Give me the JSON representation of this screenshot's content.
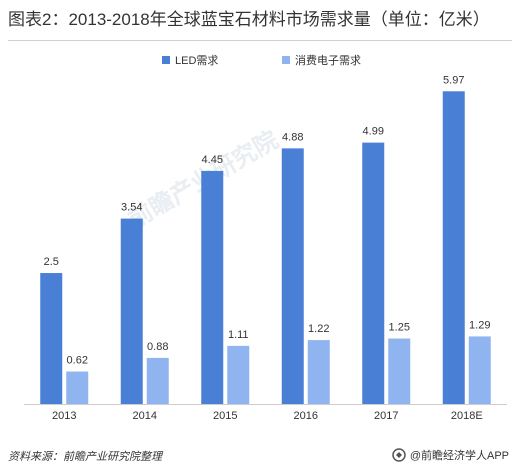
{
  "title": "图表2：2013-2018年全球蓝宝石材料市场需求量（单位：亿米）",
  "watermark_text": "前瞻产业研究院",
  "source_text": "资料来源：前瞻产业研究院整理",
  "brand_text": "@前瞻经济学人APP",
  "brand_icon": "brand-logo-icon",
  "colors": {
    "series_led": "#4a7fd6",
    "series_consumer": "#8fb4ef",
    "axis": "#cccccc",
    "text": "#333333"
  },
  "chart_data": {
    "type": "bar",
    "title": "图表2：2013-2018年全球蓝宝石材料市场需求量（单位：亿米）",
    "xlabel": "",
    "ylabel": "",
    "categories": [
      "2013",
      "2014",
      "2015",
      "2016",
      "2017",
      "2018E"
    ],
    "ylim": [
      0,
      6.3
    ],
    "grid": false,
    "legend_position": "top-center",
    "series": [
      {
        "name": "LED需求",
        "color": "#4a7fd6",
        "values": [
          2.5,
          3.54,
          4.45,
          4.88,
          4.99,
          5.97
        ],
        "labels": [
          "2.5",
          "3.54",
          "4.45",
          "4.88",
          "4.99",
          "5.97"
        ]
      },
      {
        "name": "消费电子需求",
        "color": "#8fb4ef",
        "values": [
          0.62,
          0.88,
          1.11,
          1.22,
          1.25,
          1.29
        ],
        "labels": [
          "0.62",
          "0.88",
          "1.11",
          "1.22",
          "1.25",
          "1.29"
        ]
      }
    ]
  }
}
